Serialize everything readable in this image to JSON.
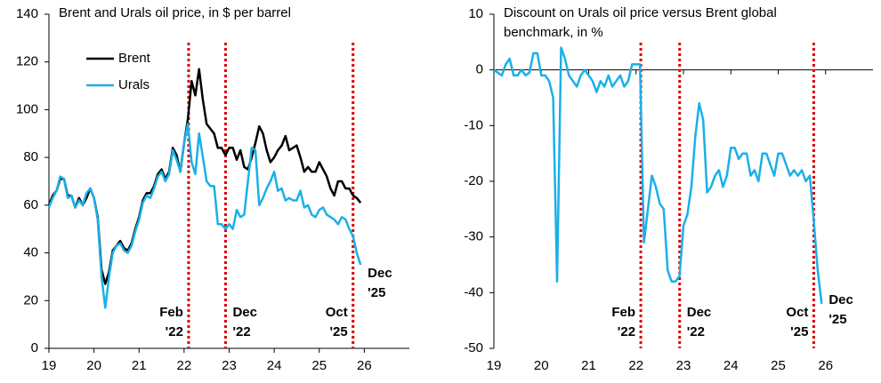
{
  "chart_data": [
    {
      "type": "line",
      "title": "Brent and Urals oil price, in $ per barrel",
      "x": [
        19,
        19.083,
        19.167,
        19.25,
        19.333,
        19.417,
        19.5,
        19.583,
        19.667,
        19.75,
        19.833,
        19.917,
        20,
        20.083,
        20.167,
        20.25,
        20.333,
        20.417,
        20.5,
        20.583,
        20.667,
        20.75,
        20.833,
        20.917,
        21,
        21.083,
        21.167,
        21.25,
        21.333,
        21.417,
        21.5,
        21.583,
        21.667,
        21.75,
        21.833,
        21.917,
        22,
        22.083,
        22.167,
        22.25,
        22.333,
        22.417,
        22.5,
        22.583,
        22.667,
        22.75,
        22.833,
        22.917,
        23,
        23.083,
        23.167,
        23.25,
        23.333,
        23.417,
        23.5,
        23.583,
        23.667,
        23.75,
        23.833,
        23.917,
        24,
        24.083,
        24.167,
        24.25,
        24.333,
        24.417,
        24.5,
        24.583,
        24.667,
        24.75,
        24.833,
        24.917,
        25,
        25.083,
        25.167,
        25.25,
        25.333,
        25.417,
        25.5,
        25.583,
        25.667,
        25.75,
        25.833,
        25.917
      ],
      "series": [
        {
          "name": "Brent",
          "color": "#000000",
          "values": [
            60,
            64,
            66,
            71,
            71,
            64,
            64,
            59,
            63,
            60,
            63,
            67,
            63,
            55,
            33,
            27,
            32,
            41,
            43,
            45,
            42,
            41,
            44,
            50,
            55,
            62,
            65,
            65,
            68,
            73,
            75,
            71,
            74,
            84,
            81,
            74,
            86,
            96,
            112,
            106,
            117,
            104,
            94,
            92,
            90,
            84,
            84,
            81,
            84,
            84,
            79,
            83,
            76,
            75,
            80,
            86,
            93,
            90,
            83,
            78,
            80,
            83,
            85,
            89,
            83,
            84,
            85,
            80,
            74,
            76,
            74,
            74,
            78,
            75,
            72,
            67,
            64,
            70,
            70,
            67,
            67,
            64,
            63,
            61
          ]
        },
        {
          "name": "Urals",
          "color": "#1ab0e8",
          "values": [
            59,
            63,
            66,
            72,
            71,
            63,
            64,
            59,
            62,
            60,
            65,
            67,
            63,
            54,
            30,
            17,
            30,
            40,
            43,
            44,
            41,
            40,
            43,
            49,
            54,
            61,
            64,
            63,
            67,
            72,
            74,
            70,
            73,
            83,
            79,
            74,
            86,
            94,
            78,
            73,
            90,
            80,
            70,
            68,
            68,
            52,
            52,
            50,
            52,
            50,
            58,
            55,
            56,
            70,
            84,
            83,
            60,
            63,
            67,
            70,
            74,
            66,
            67,
            62,
            63,
            62,
            62,
            66,
            59,
            60,
            56,
            55,
            58,
            59,
            56,
            55,
            54,
            52,
            55,
            54,
            50,
            47,
            40,
            35
          ]
        }
      ],
      "xlim": [
        19,
        27
      ],
      "xticks": [
        19,
        20,
        21,
        22,
        23,
        24,
        25,
        26
      ],
      "ylim": [
        0,
        140
      ],
      "yticks": [
        0,
        20,
        40,
        60,
        80,
        100,
        120,
        140
      ],
      "annotations": [
        {
          "lines": [
            "Feb",
            "'22"
          ],
          "x": 22.1,
          "color": "#e00000"
        },
        {
          "lines": [
            "Dec",
            "'22"
          ],
          "x": 22.92,
          "color": "#e00000"
        },
        {
          "lines": [
            "Oct",
            "'25"
          ],
          "x": 25.75,
          "color": "#e00000"
        }
      ],
      "end_label": {
        "lines": [
          "Dec",
          "'25"
        ],
        "color": "#1ab0e8"
      }
    },
    {
      "type": "line",
      "title": "Discount on Urals oil price versus Brent global benchmark, in %",
      "x": [
        19,
        19.083,
        19.167,
        19.25,
        19.333,
        19.417,
        19.5,
        19.583,
        19.667,
        19.75,
        19.833,
        19.917,
        20,
        20.083,
        20.167,
        20.25,
        20.333,
        20.417,
        20.5,
        20.583,
        20.667,
        20.75,
        20.833,
        20.917,
        21,
        21.083,
        21.167,
        21.25,
        21.333,
        21.417,
        21.5,
        21.583,
        21.667,
        21.75,
        21.833,
        21.917,
        22,
        22.083,
        22.167,
        22.25,
        22.333,
        22.417,
        22.5,
        22.583,
        22.667,
        22.75,
        22.833,
        22.917,
        23,
        23.083,
        23.167,
        23.25,
        23.333,
        23.417,
        23.5,
        23.583,
        23.667,
        23.75,
        23.833,
        23.917,
        24,
        24.083,
        24.167,
        24.25,
        24.333,
        24.417,
        24.5,
        24.583,
        24.667,
        24.75,
        24.833,
        24.917,
        25,
        25.083,
        25.167,
        25.25,
        25.333,
        25.417,
        25.5,
        25.583,
        25.667,
        25.75,
        25.833,
        25.917
      ],
      "series": [
        {
          "name": "Discount",
          "color": "#1ab0e8",
          "values": [
            0,
            -0.5,
            -1,
            1,
            2,
            -1,
            -1,
            0,
            -1,
            -0.5,
            3,
            3,
            -1,
            -1,
            -2,
            -5,
            -38,
            4,
            2,
            -1,
            -2,
            -3,
            -1,
            0,
            -1,
            -2,
            -4,
            -2,
            -3,
            -1,
            -3,
            -2,
            -1,
            -3,
            -2,
            1,
            1,
            1,
            -31,
            -25,
            -19,
            -21,
            -24,
            -25,
            -36,
            -38,
            -38,
            -37,
            -28,
            -26,
            -21,
            -12,
            -6,
            -9,
            -22,
            -21,
            -19,
            -18,
            -21,
            -19,
            -14,
            -14,
            -16,
            -15,
            -15,
            -19,
            -18,
            -20,
            -15,
            -15,
            -17,
            -19,
            -15,
            -15,
            -17,
            -19,
            -18,
            -19,
            -18,
            -20,
            -19,
            -27,
            -36,
            -42
          ]
        }
      ],
      "xlim": [
        19,
        27
      ],
      "xticks": [
        19,
        20,
        21,
        22,
        23,
        24,
        25,
        26
      ],
      "ylim": [
        -50,
        10
      ],
      "yticks": [
        -50,
        -40,
        -30,
        -20,
        -10,
        0,
        10
      ],
      "annotations": [
        {
          "lines": [
            "Feb",
            "'22"
          ],
          "x": 22.1,
          "color": "#e00000"
        },
        {
          "lines": [
            "Dec",
            "'22"
          ],
          "x": 22.92,
          "color": "#e00000"
        },
        {
          "lines": [
            "Oct",
            "'25"
          ],
          "x": 25.75,
          "color": "#e00000"
        }
      ],
      "end_label": {
        "lines": [
          "Dec",
          "'25"
        ],
        "color": "#1ab0e8"
      }
    }
  ]
}
